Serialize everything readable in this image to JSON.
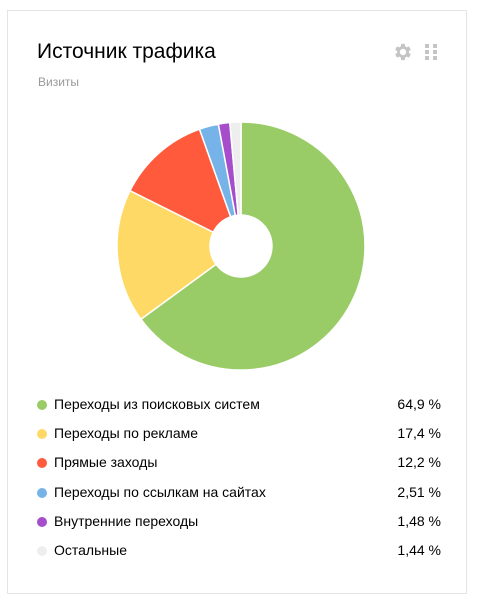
{
  "widget": {
    "title": "Источник трафика",
    "subtitle": "Визиты",
    "settings_icon": "gear-icon",
    "drag_icon": "drag-handle-icon"
  },
  "chart_data": {
    "type": "pie",
    "title": "Источник трафика",
    "subtitle": "Визиты",
    "donut": true,
    "start_angle_deg": 0,
    "direction": "clockwise",
    "categories": [
      "Переходы из поисковых систем",
      "Переходы по рекламе",
      "Прямые заходы",
      "Переходы по ссылкам на сайтах",
      "Внутренние переходы",
      "Остальные"
    ],
    "values": [
      64.9,
      17.4,
      12.2,
      2.51,
      1.48,
      1.44
    ],
    "colors": [
      "#99cc66",
      "#ffd966",
      "#ff5a3c",
      "#75b3e9",
      "#a64dcc",
      "#eeeeee"
    ],
    "value_labels": [
      "64,9 %",
      "17,4 %",
      "12,2 %",
      "2,51 %",
      "1,48 %",
      "1,44 %"
    ],
    "legend_position": "bottom"
  },
  "legend": {
    "items": [
      {
        "label": "Переходы из поисковых систем",
        "value": "64,9 %",
        "color": "#99cc66"
      },
      {
        "label": "Переходы по рекламе",
        "value": "17,4 %",
        "color": "#ffd966"
      },
      {
        "label": "Прямые заходы",
        "value": "12,2 %",
        "color": "#ff5a3c"
      },
      {
        "label": "Переходы по ссылкам на сайтах",
        "value": "2,51 %",
        "color": "#75b3e9"
      },
      {
        "label": "Внутренние переходы",
        "value": "1,48 %",
        "color": "#a64dcc"
      },
      {
        "label": "Остальные",
        "value": "1,44 %",
        "color": "#eeeeee"
      }
    ]
  }
}
